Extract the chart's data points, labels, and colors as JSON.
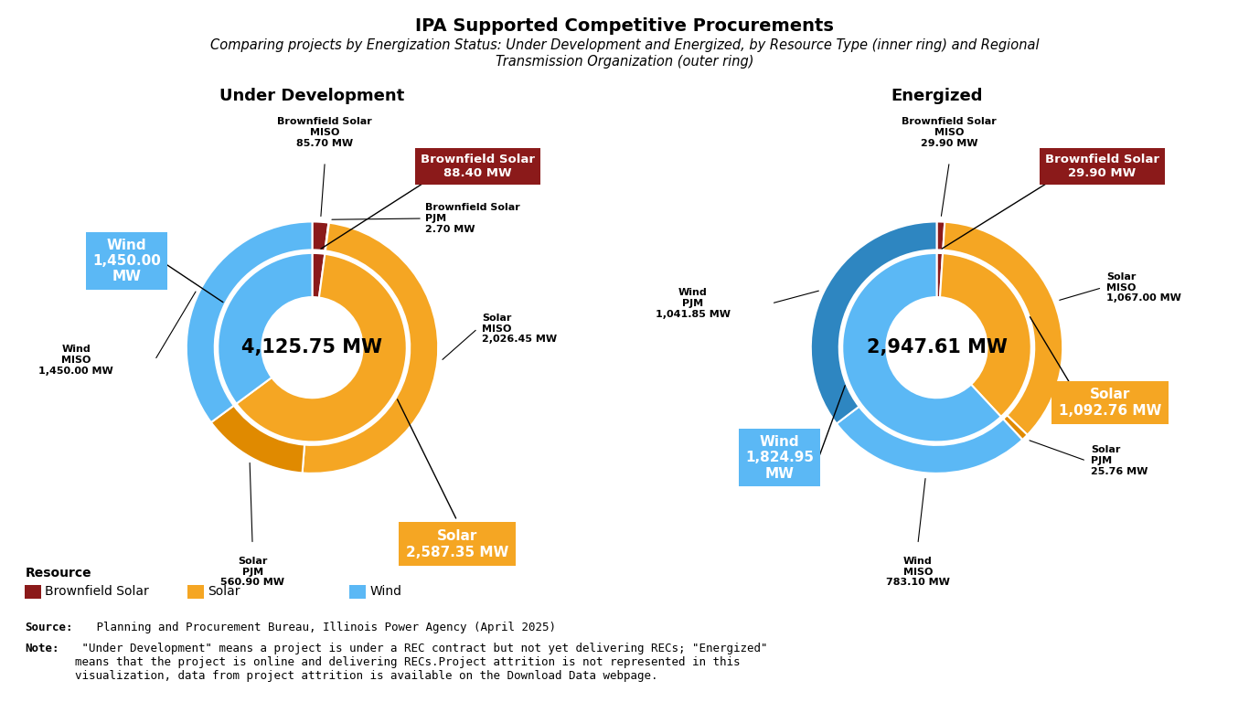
{
  "title": "IPA Supported Competitive Procurements",
  "subtitle": "Comparing projects by Energization Status: Under Development and Energized, by Resource Type (inner ring) and Regional\nTransmission Organization (outer ring)",
  "left_title": "Under Development",
  "right_title": "Energized",
  "left_total": "4,125.75 MW",
  "right_total": "2,947.61 MW",
  "colors": {
    "brownfield": "#8B1A1A",
    "solar_miso": "#F5A623",
    "solar_pjm": "#E08A00",
    "wind_miso": "#5BB8F5",
    "wind_pjm": "#2E86C1",
    "white": "#FFFFFF"
  },
  "left_inner": [
    {
      "label": "Brownfield Solar",
      "value": 88.4,
      "color": "#8B1A1A"
    },
    {
      "label": "Solar",
      "value": 2587.35,
      "color": "#F5A623"
    },
    {
      "label": "Wind",
      "value": 1450.0,
      "color": "#5BB8F5"
    }
  ],
  "left_outer": [
    {
      "label": "Brownfield Solar MISO",
      "value": 85.7,
      "color": "#8B1A1A"
    },
    {
      "label": "Brownfield Solar PJM",
      "value": 2.7,
      "color": "#6B1515"
    },
    {
      "label": "Solar MISO",
      "value": 2026.45,
      "color": "#F5A623"
    },
    {
      "label": "Solar PJM",
      "value": 560.9,
      "color": "#E08A00"
    },
    {
      "label": "Wind MISO",
      "value": 1450.0,
      "color": "#5BB8F5"
    }
  ],
  "right_inner": [
    {
      "label": "Brownfield Solar",
      "value": 29.9,
      "color": "#8B1A1A"
    },
    {
      "label": "Solar",
      "value": 1092.76,
      "color": "#F5A623"
    },
    {
      "label": "Wind",
      "value": 1824.95,
      "color": "#5BB8F5"
    }
  ],
  "right_outer": [
    {
      "label": "Brownfield Solar MISO",
      "value": 29.9,
      "color": "#8B1A1A"
    },
    {
      "label": "Solar MISO",
      "value": 1067.0,
      "color": "#F5A623"
    },
    {
      "label": "Solar PJM",
      "value": 25.76,
      "color": "#E08A00"
    },
    {
      "label": "Wind MISO",
      "value": 783.1,
      "color": "#5BB8F5"
    },
    {
      "label": "Wind PJM",
      "value": 1041.85,
      "color": "#2E86C1"
    }
  ],
  "legend_items": [
    {
      "label": "Brownfield Solar",
      "color": "#8B1A1A"
    },
    {
      "label": "Solar",
      "color": "#F5A623"
    },
    {
      "label": "Wind",
      "color": "#5BB8F5"
    }
  ],
  "source_bold": "Source:",
  "source_rest": " Planning and Procurement Bureau, Illinois Power Agency (April 2025)",
  "note_bold": "Note:",
  "note_rest": " \"Under Development\" means a project is under a REC contract but not yet delivering RECs; \"Energized\"\nmeans that the project is online and delivering RECs.Project attrition is not represented in this\nvisualization, data from project attrition is available on the Download Data webpage."
}
